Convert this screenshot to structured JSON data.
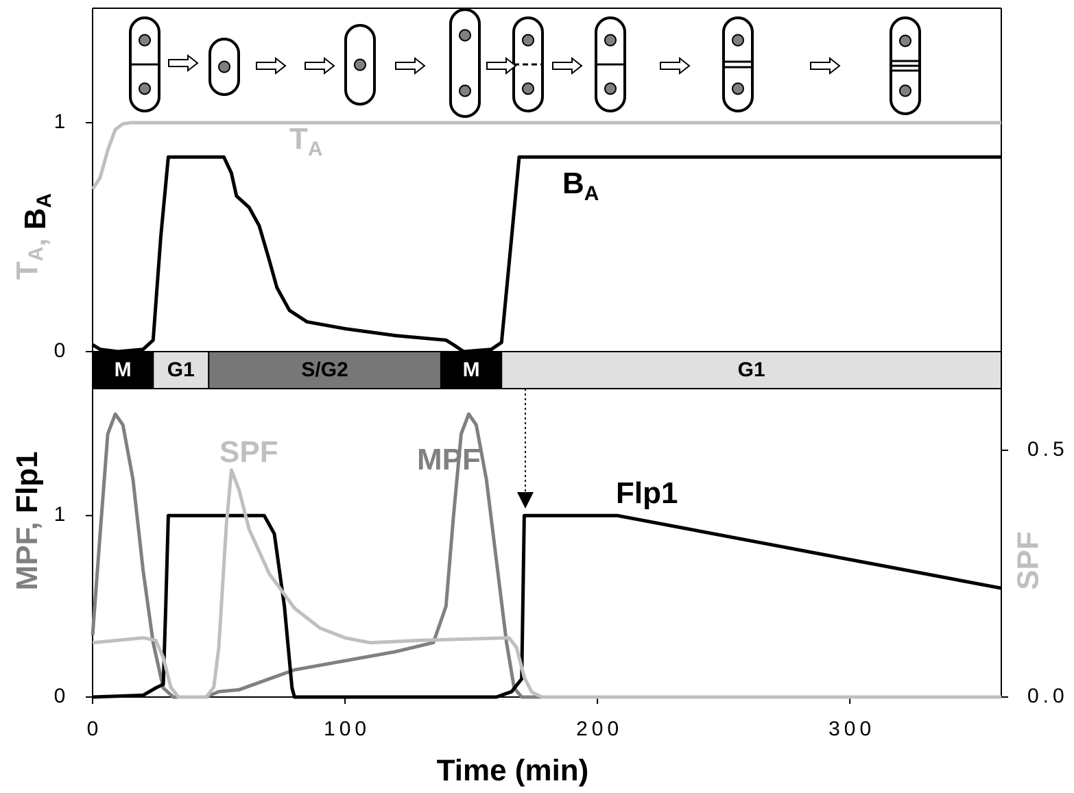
{
  "chart_data": [
    {
      "type": "line",
      "ylabel": [
        {
          "text": "T",
          "sub": "A",
          "color": "#bfbfbf"
        },
        {
          "text": ", ",
          "color": "#bfbfbf"
        },
        {
          "text": "B",
          "sub": "A",
          "color": "#000000"
        }
      ],
      "xlim": [
        0,
        360
      ],
      "ylim": [
        0,
        1.5
      ],
      "yticks": [
        0,
        1
      ],
      "series": [
        {
          "name": "T",
          "subscript": "A",
          "color": "#bfbfbf",
          "x": [
            0,
            3,
            6,
            9,
            12,
            15,
            360
          ],
          "values": [
            0.71,
            0.76,
            0.88,
            0.97,
            0.995,
            1,
            1
          ]
        },
        {
          "name": "B",
          "subscript": "A",
          "color": "#000000",
          "x": [
            0,
            3,
            10,
            20,
            24,
            27,
            30,
            52,
            55,
            57,
            62,
            66,
            70,
            73,
            78,
            85,
            100,
            120,
            140,
            143,
            147,
            158,
            162,
            166,
            169,
            360
          ],
          "values": [
            0.03,
            0.01,
            0,
            0.01,
            0.05,
            0.5,
            0.85,
            0.85,
            0.78,
            0.68,
            0.63,
            0.55,
            0.4,
            0.28,
            0.18,
            0.13,
            0.1,
            0.07,
            0.05,
            0.03,
            0,
            0.01,
            0.04,
            0.5,
            0.85,
            0.85
          ]
        }
      ],
      "phases": [
        {
          "label": "M",
          "start": 0,
          "end": 24,
          "color": "#000000",
          "text_color": "#ffffff"
        },
        {
          "label": "G1",
          "start": 24,
          "end": 46,
          "color": "#e0e0e0",
          "text_color": "#000000"
        },
        {
          "label": "S/G2",
          "start": 46,
          "end": 138,
          "color": "#777777",
          "text_color": "#000000"
        },
        {
          "label": "M",
          "start": 138,
          "end": 162,
          "color": "#000000",
          "text_color": "#ffffff"
        },
        {
          "label": "G1",
          "start": 162,
          "end": 360,
          "color": "#e0e0e0",
          "text_color": "#000000"
        }
      ]
    },
    {
      "type": "line",
      "xlabel": "Time (min)",
      "ylabel": [
        {
          "text": "MPF, ",
          "color": "#808080"
        },
        {
          "text": "Flp1",
          "color": "#000000"
        }
      ],
      "y2label": "SPF",
      "xlim": [
        0,
        360
      ],
      "xticks": [
        0,
        100,
        200,
        300
      ],
      "ylim": [
        0,
        1.7
      ],
      "yticks": [
        0,
        1
      ],
      "y2lim": [
        0,
        0.625
      ],
      "y2ticks": [
        {
          "value": 0,
          "label": "0.0"
        },
        {
          "value": 0.5,
          "label": "0.5"
        }
      ],
      "series": [
        {
          "name": "MPF",
          "color": "#808080",
          "x": [
            0,
            3,
            6,
            9,
            12,
            16,
            20,
            24,
            28,
            32,
            45,
            50,
            58,
            70,
            80,
            100,
            120,
            135,
            140,
            143,
            146,
            149,
            152,
            156,
            160,
            164,
            167,
            170,
            360
          ],
          "values": [
            0.34,
            0.9,
            1.45,
            1.56,
            1.5,
            1.2,
            0.7,
            0.3,
            0.05,
            0,
            0,
            0.03,
            0.04,
            0.1,
            0.15,
            0.2,
            0.25,
            0.3,
            0.5,
            1.0,
            1.45,
            1.56,
            1.5,
            1.2,
            0.75,
            0.3,
            0.05,
            0,
            0
          ]
        },
        {
          "name": "Flp1",
          "color": "#000000",
          "x": [
            0,
            20,
            25,
            28,
            29,
            30,
            68,
            72,
            76,
            79,
            80,
            160,
            166,
            170,
            171,
            208,
            360
          ],
          "values": [
            0,
            0.01,
            0.05,
            0.07,
            0.5,
            1.0,
            1.0,
            0.9,
            0.5,
            0.05,
            0,
            0,
            0.03,
            0.1,
            1.0,
            1.0,
            0.6
          ]
        },
        {
          "name": "SPF",
          "color": "#bfbfbf",
          "axis": "y2",
          "x": [
            0,
            20,
            25,
            28,
            31,
            34,
            45,
            48,
            50,
            53,
            55,
            58,
            62,
            70,
            80,
            90,
            100,
            110,
            130,
            165,
            168,
            171,
            174,
            178,
            360
          ],
          "values": [
            0.11,
            0.12,
            0.115,
            0.08,
            0.02,
            0,
            0,
            0.02,
            0.1,
            0.35,
            0.46,
            0.42,
            0.34,
            0.25,
            0.18,
            0.14,
            0.12,
            0.11,
            0.115,
            0.12,
            0.1,
            0.04,
            0.01,
            0,
            0
          ]
        }
      ]
    }
  ]
}
